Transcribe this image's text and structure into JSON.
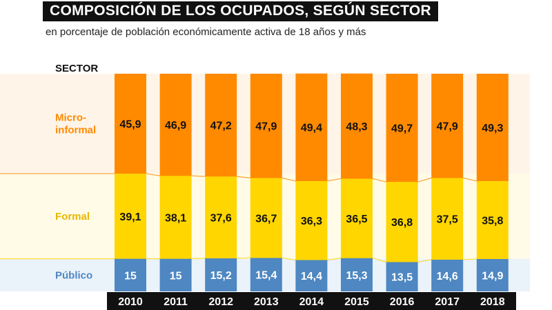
{
  "chart_data": {
    "type": "bar",
    "stacked": true,
    "title": "COMPOSICIÓN DE LOS OCUPADOS, SEGÚN SECTOR",
    "subtitle": "en porcentaje de población económicamente activa de 18 años y más",
    "legend_title": "SECTOR",
    "categories": [
      "2010",
      "2011",
      "2012",
      "2013",
      "2014",
      "2015",
      "2016",
      "2017",
      "2018"
    ],
    "series": [
      {
        "name": "Público",
        "color": "#4e87c1",
        "label_color": "#4e87c1",
        "values": [
          15,
          15,
          15.2,
          15.4,
          14.4,
          15.3,
          13.5,
          14.6,
          14.9
        ],
        "labels": [
          "15",
          "15",
          "15,2",
          "15,4",
          "14,4",
          "15,3",
          "13,5",
          "14,6",
          "14,9"
        ]
      },
      {
        "name": "Formal",
        "color": "#ffd600",
        "label_color": "#e8b800",
        "values": [
          39.1,
          38.1,
          37.6,
          36.7,
          36.3,
          36.5,
          36.8,
          37.5,
          35.8
        ],
        "labels": [
          "39,1",
          "38,1",
          "37,6",
          "36,7",
          "36,3",
          "36,5",
          "36,8",
          "37,5",
          "35,8"
        ]
      },
      {
        "name": "Micro-informal",
        "color": "#ff8a00",
        "label_color": "#ff8a00",
        "values": [
          45.9,
          46.9,
          47.2,
          47.9,
          49.4,
          48.3,
          49.7,
          47.9,
          49.3
        ],
        "labels": [
          "45,9",
          "46,9",
          "47,2",
          "47,9",
          "49,4",
          "48,3",
          "49,7",
          "47,9",
          "49,3"
        ]
      }
    ],
    "series_label_lines": {
      "Micro-informal": [
        "Micro-",
        "informal"
      ]
    },
    "ylim": [
      0,
      100
    ],
    "grid": false,
    "legend": "left"
  }
}
